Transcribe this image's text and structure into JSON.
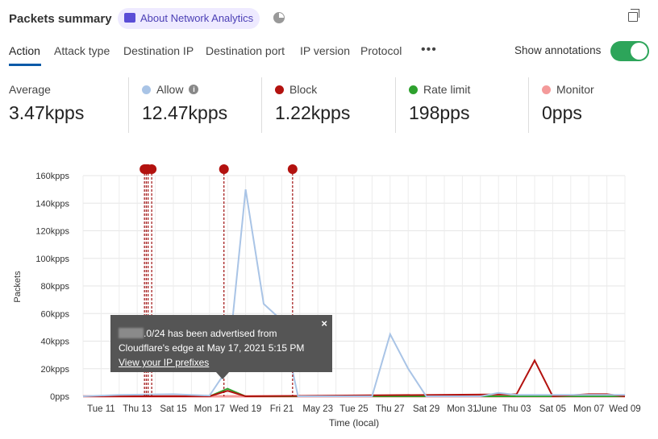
{
  "header": {
    "title": "Packets summary",
    "about_label": "About Network Analytics"
  },
  "tabs": [
    {
      "label": "Action",
      "active": true
    },
    {
      "label": "Attack type"
    },
    {
      "label": "Destination IP"
    },
    {
      "label": "Destination port"
    },
    {
      "label": "IP version"
    },
    {
      "label": "Protocol"
    }
  ],
  "more_label": "•••",
  "annotations_toggle": {
    "label": "Show annotations",
    "on": true
  },
  "stats": [
    {
      "label": "Average",
      "value": "3.47kpps"
    },
    {
      "label": "Allow",
      "value": "12.47kpps",
      "color": "#a9c4e6"
    },
    {
      "label": "Block",
      "value": "1.22kpps",
      "color": "#b3120f"
    },
    {
      "label": "Rate limit",
      "value": "198pps",
      "color": "#2ea12e"
    },
    {
      "label": "Monitor",
      "value": "0pps",
      "color": "#f49a9a"
    }
  ],
  "tooltip": {
    "text": ".0/24 has been advertised from",
    "text2": "Cloudflare's edge at May 17, 2021 5:15 PM",
    "link": "View your IP prefixes",
    "close": "×"
  },
  "chart_data": {
    "type": "line",
    "xlabel": "Time (local)",
    "ylabel": "Packets",
    "xlim": [
      "2021-05-10",
      "2021-06-09"
    ],
    "ylim": [
      0,
      160000
    ],
    "grid": true,
    "y_ticks": [
      "0pps",
      "20kpps",
      "40kpps",
      "60kpps",
      "80kpps",
      "100kpps",
      "120kpps",
      "140kpps",
      "160kpps"
    ],
    "x_ticks": [
      [
        "2021-05-11",
        "Tue 11"
      ],
      [
        "2021-05-13",
        "Thu 13"
      ],
      [
        "2021-05-15",
        "Sat 15"
      ],
      [
        "2021-05-17",
        "Mon 17"
      ],
      [
        "2021-05-19",
        "Wed 19"
      ],
      [
        "2021-05-21",
        "Fri 21"
      ],
      [
        "2021-05-23",
        "May 23"
      ],
      [
        "2021-05-25",
        "Tue 25"
      ],
      [
        "2021-05-27",
        "Thu 27"
      ],
      [
        "2021-05-29",
        "Sat 29"
      ],
      [
        "2021-05-31",
        "Mon 31"
      ],
      [
        "2021-06-01",
        "June"
      ],
      [
        "2021-06-03",
        "Thu 03"
      ],
      [
        "2021-06-05",
        "Sat 05"
      ],
      [
        "2021-06-07",
        "Mon 07"
      ],
      [
        "2021-06-09",
        "Wed 09"
      ]
    ],
    "series": [
      {
        "name": "Allow",
        "color": "#a9c4e6",
        "points": [
          [
            "2021-05-10",
            0
          ],
          [
            "2021-05-12",
            1000
          ],
          [
            "2021-05-15",
            1500
          ],
          [
            "2021-05-17",
            500
          ],
          [
            "2021-05-18",
            20000
          ],
          [
            "2021-05-19",
            150000
          ],
          [
            "2021-05-20",
            67000
          ],
          [
            "2021-05-21",
            55000
          ],
          [
            "2021-05-21.9",
            0
          ],
          [
            "2021-05-26",
            0
          ],
          [
            "2021-05-27",
            45000
          ],
          [
            "2021-05-28",
            20000
          ],
          [
            "2021-05-29",
            0
          ],
          [
            "2021-06-01",
            0
          ],
          [
            "2021-06-02",
            2500
          ],
          [
            "2021-06-03",
            1000
          ],
          [
            "2021-06-09",
            1000
          ]
        ]
      },
      {
        "name": "Block",
        "color": "#b3120f",
        "points": [
          [
            "2021-05-10",
            0
          ],
          [
            "2021-05-17",
            0
          ],
          [
            "2021-05-18",
            4000
          ],
          [
            "2021-05-19",
            0
          ],
          [
            "2021-06-03",
            1500
          ],
          [
            "2021-06-04",
            26000
          ],
          [
            "2021-06-05",
            0
          ],
          [
            "2021-06-07",
            1500
          ],
          [
            "2021-06-08",
            1500
          ],
          [
            "2021-06-09",
            0
          ]
        ]
      },
      {
        "name": "Rate limit",
        "color": "#2ea12e",
        "points": [
          [
            "2021-05-10",
            0
          ],
          [
            "2021-05-17",
            0
          ],
          [
            "2021-05-18",
            5500
          ],
          [
            "2021-05-19",
            0
          ],
          [
            "2021-06-09",
            0
          ]
        ]
      },
      {
        "name": "Monitor",
        "color": "#f49a9a",
        "points": [
          [
            "2021-05-10",
            0
          ],
          [
            "2021-06-09",
            0
          ]
        ]
      }
    ],
    "annotations": [
      "2021-05-13.4",
      "2021-05-13.5",
      "2021-05-13.6",
      "2021-05-13.8",
      "2021-05-17.8",
      "2021-05-21.6"
    ]
  }
}
